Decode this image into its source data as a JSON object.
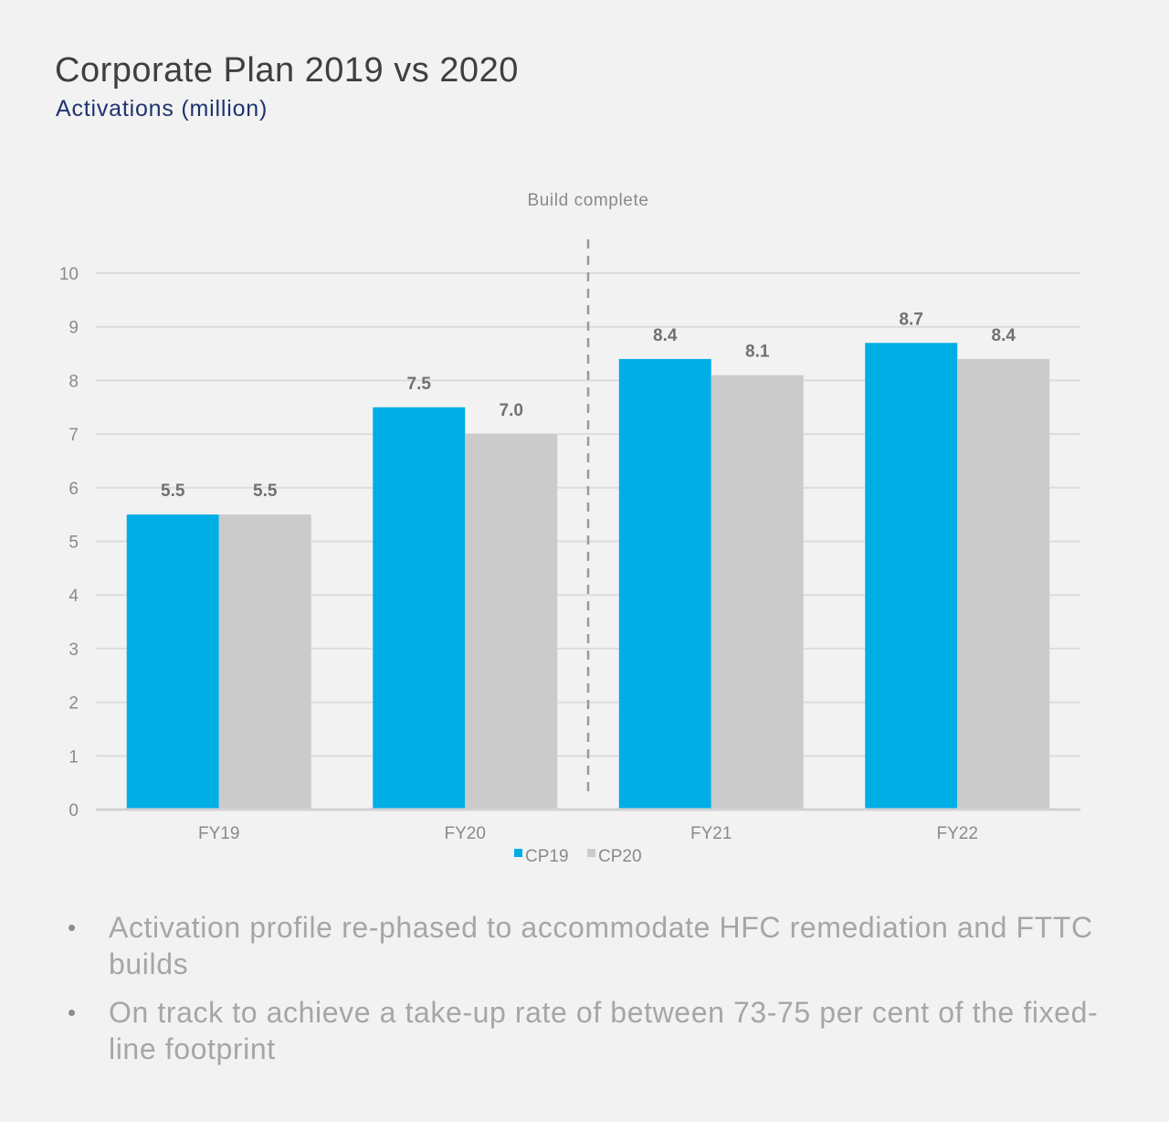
{
  "header": {
    "title": "Corporate Plan 2019 vs 2020",
    "subtitle": "Activations (million)"
  },
  "chart_data": {
    "type": "bar",
    "categories": [
      "FY19",
      "FY20",
      "FY21",
      "FY22"
    ],
    "series": [
      {
        "name": "CP19",
        "values": [
          5.5,
          7.5,
          8.4,
          8.7
        ],
        "color": "#00aee6"
      },
      {
        "name": "CP20",
        "values": [
          5.5,
          7.0,
          8.1,
          8.4
        ],
        "color": "#cbcbcb"
      }
    ],
    "data_labels": [
      [
        "5.5",
        "7.5",
        "8.4",
        "8.7"
      ],
      [
        "5.5",
        "7.0",
        "8.1",
        "8.4"
      ]
    ],
    "ylim": [
      0,
      10
    ],
    "yticks": [
      "0",
      "1",
      "2",
      "3",
      "4",
      "5",
      "6",
      "7",
      "8",
      "9",
      "10"
    ],
    "grid": true,
    "legend_position": "bottom",
    "annotation": {
      "text": "Build complete",
      "between_categories": [
        "FY20",
        "FY21"
      ]
    }
  },
  "bullets": [
    "Activation profile re-phased to accommodate HFC remediation and FTTC builds",
    "On track to achieve a take-up rate of between 73-75 per cent of the fixed-line footprint"
  ]
}
